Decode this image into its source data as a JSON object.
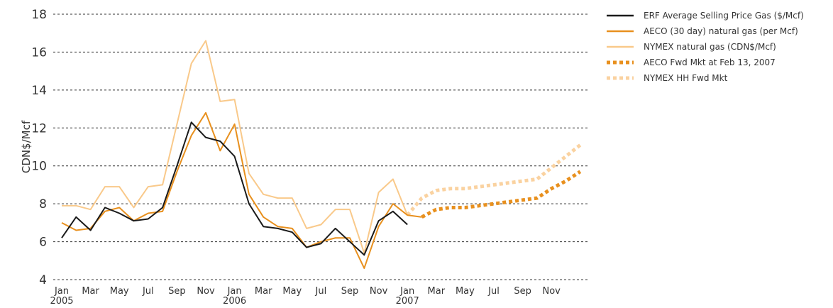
{
  "chart_data": {
    "type": "line",
    "y_label": "CDN$/Mcf",
    "categories": [
      "Jan",
      null,
      "Mar",
      null,
      "May",
      null,
      "Jul",
      null,
      "Sep",
      null,
      "Nov",
      null,
      "Jan",
      null,
      "Mar",
      null,
      "May",
      null,
      "Jul",
      null,
      "Sep",
      null,
      "Nov",
      null,
      "Jan",
      null,
      "Mar",
      null,
      "May",
      null,
      "Jul",
      null,
      "Sep",
      null,
      "Nov",
      null,
      null
    ],
    "years": [
      "2005",
      null,
      null,
      null,
      null,
      null,
      null,
      null,
      null,
      null,
      null,
      null,
      "2006",
      null,
      null,
      null,
      null,
      null,
      null,
      null,
      null,
      null,
      null,
      null,
      "2007",
      null,
      null,
      null,
      null,
      null,
      null,
      null,
      null,
      null,
      null,
      null,
      null
    ],
    "ylim": [
      4,
      18
    ],
    "yticks": [
      4,
      6,
      8,
      10,
      12,
      14,
      16,
      18
    ],
    "grid": true,
    "legend": "right",
    "series": [
      {
        "name": "ERF Average Selling Price Gas ($/Mcf)",
        "color": "#1a1a1a",
        "dashed": false,
        "values": [
          6.2,
          7.3,
          6.6,
          7.8,
          7.5,
          7.1,
          7.2,
          7.8,
          10.0,
          12.3,
          11.5,
          11.3,
          10.5,
          8.0,
          6.8,
          6.7,
          6.5,
          5.7,
          5.9,
          6.7,
          6.0,
          5.3,
          7.1,
          7.6,
          6.9,
          null,
          null,
          null,
          null,
          null,
          null,
          null,
          null,
          null,
          null,
          null,
          null
        ]
      },
      {
        "name": "AECO (30 day) natural gas (per Mcf)",
        "color": "#e8901e",
        "dashed": false,
        "values": [
          7.0,
          6.6,
          6.7,
          7.6,
          7.8,
          7.1,
          7.5,
          7.6,
          9.7,
          11.6,
          12.8,
          10.8,
          12.2,
          8.5,
          7.3,
          6.8,
          6.7,
          5.7,
          6.0,
          6.2,
          6.2,
          4.6,
          6.8,
          8.0,
          7.4,
          7.3,
          null,
          null,
          null,
          null,
          null,
          null,
          null,
          null,
          null,
          null,
          null
        ]
      },
      {
        "name": "NYMEX natural gas (CDN$/Mcf)",
        "color": "#f9c98a",
        "dashed": false,
        "values": [
          7.9,
          7.9,
          7.7,
          8.9,
          8.9,
          7.8,
          8.9,
          9.0,
          12.2,
          15.4,
          16.6,
          13.4,
          13.5,
          9.6,
          8.5,
          8.3,
          8.3,
          6.7,
          6.9,
          7.7,
          7.7,
          5.4,
          8.6,
          9.3,
          7.4,
          null,
          null,
          null,
          null,
          null,
          null,
          null,
          null,
          null,
          null,
          null,
          null
        ]
      },
      {
        "name": "AECO Fwd Mkt at Feb 13, 2007",
        "color": "#e8901e",
        "dashed": true,
        "values": [
          null,
          null,
          null,
          null,
          null,
          null,
          null,
          null,
          null,
          null,
          null,
          null,
          null,
          null,
          null,
          null,
          null,
          null,
          null,
          null,
          null,
          null,
          null,
          null,
          null,
          7.3,
          7.7,
          7.8,
          7.8,
          7.9,
          8.0,
          8.1,
          8.2,
          8.3,
          8.8,
          9.2,
          9.7
        ]
      },
      {
        "name": "NYMEX HH Fwd Mkt",
        "color": "#fad2a0",
        "dashed": true,
        "values": [
          null,
          null,
          null,
          null,
          null,
          null,
          null,
          null,
          null,
          null,
          null,
          null,
          null,
          null,
          null,
          null,
          null,
          null,
          null,
          null,
          null,
          null,
          null,
          null,
          7.4,
          8.3,
          8.7,
          8.8,
          8.8,
          8.9,
          9.0,
          9.1,
          9.2,
          9.3,
          9.9,
          10.5,
          11.1
        ]
      }
    ]
  }
}
